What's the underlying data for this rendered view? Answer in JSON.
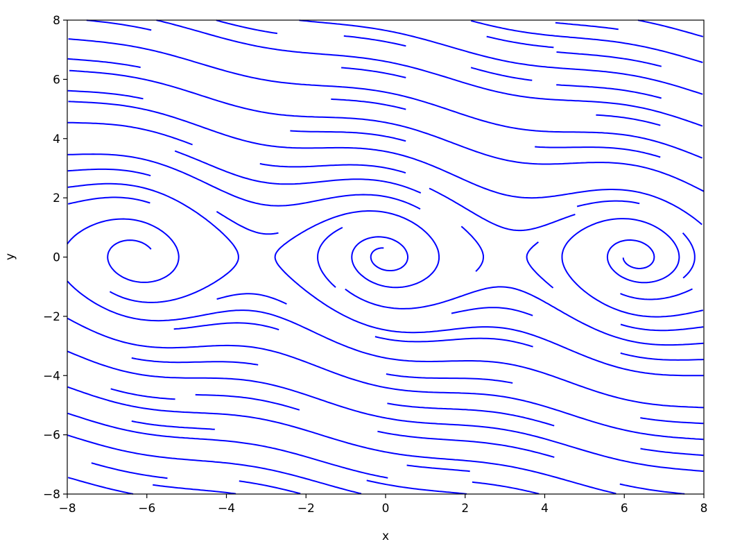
{
  "chart_data": {
    "type": "streamplot",
    "title": "",
    "xlabel": "x",
    "ylabel": "y",
    "xlim": [
      -8,
      8
    ],
    "ylim": [
      -8,
      8
    ],
    "xticks": [
      "−8",
      "−6",
      "−4",
      "−2",
      "0",
      "2",
      "4",
      "6",
      "8"
    ],
    "yticks": [
      "−8",
      "−6",
      "−4",
      "−2",
      "0",
      "2",
      "4",
      "6",
      "8"
    ],
    "grid": false,
    "legend": "none",
    "line_color": "#0000ff",
    "density": 1
  }
}
